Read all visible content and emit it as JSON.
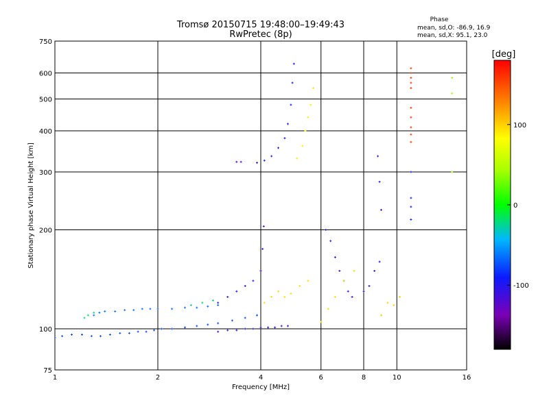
{
  "chart_data": {
    "type": "scatter",
    "title": "Tromsø 20150715 19:48:00–19:49:43",
    "subtitle": "RwPretec (8p)",
    "phase_header": {
      "title": "Phase",
      "line1": "mean, sd,O: -86.9, 16.9",
      "line2": "mean, sd,X:  95.1, 23.0"
    },
    "xlabel": "Frequency [MHz]",
    "ylabel": "Stationary phase Virtual Height [km]",
    "x_scale": "log",
    "y_scale": "log",
    "xlim": [
      1,
      16
    ],
    "ylim": [
      75,
      750
    ],
    "x_ticks": [
      1,
      2,
      4,
      6,
      8,
      10,
      16
    ],
    "x_tick_labels": [
      "1",
      "2",
      "4",
      "6",
      "8",
      "10",
      "16"
    ],
    "y_ticks": [
      75,
      100,
      200,
      300,
      400,
      500,
      600,
      750
    ],
    "y_tick_labels": [
      "75",
      "100",
      "200",
      "300",
      "400",
      "500",
      "600",
      "750"
    ],
    "grid": true,
    "colorbar": {
      "label": "[deg]",
      "range": [
        -180,
        180
      ],
      "ticks": [
        100,
        0,
        -100
      ],
      "tick_labels": [
        "100",
        "0",
        "-100"
      ]
    },
    "series": [
      {
        "phase": -75,
        "x": [
          1.0,
          1.05,
          1.12,
          1.2,
          1.28,
          1.36,
          1.45,
          1.55,
          1.65,
          1.75,
          1.85,
          1.95,
          2.05,
          2.2,
          2.4,
          2.6,
          2.8,
          3.0,
          3.3,
          3.6,
          3.9
        ],
        "y": [
          94,
          95,
          96,
          96,
          95,
          95,
          96,
          97,
          97,
          98,
          98,
          99,
          100,
          100,
          101,
          102,
          103,
          104,
          106,
          108,
          110
        ]
      },
      {
        "phase": -65,
        "x": [
          1.3,
          1.35,
          1.4,
          1.5,
          1.6,
          1.7,
          1.8,
          1.9,
          2.0,
          2.2,
          2.4,
          2.6,
          2.8,
          3.0
        ],
        "y": [
          110,
          112,
          113,
          113,
          114,
          114,
          115,
          115,
          115,
          115,
          116,
          116,
          117,
          118
        ]
      },
      {
        "phase": -20,
        "x": [
          1.22,
          1.25,
          1.3,
          2.5,
          2.7,
          2.9
        ],
        "y": [
          108,
          110,
          112,
          118,
          120,
          122
        ]
      },
      {
        "phase": -110,
        "x": [
          3.0,
          3.2,
          3.4,
          3.6,
          3.8,
          4.0,
          4.2,
          4.4,
          4.6,
          4.8
        ],
        "y": [
          98,
          99,
          99,
          100,
          100,
          101,
          101,
          101,
          102,
          102
        ]
      },
      {
        "phase": -100,
        "x": [
          3.0,
          3.2,
          3.4,
          3.6,
          3.8,
          4.0,
          4.05,
          4.08
        ],
        "y": [
          120,
          125,
          130,
          135,
          140,
          150,
          175,
          205
        ]
      },
      {
        "phase": 95,
        "x": [
          4.1,
          4.3,
          4.5,
          4.7,
          4.9,
          5.2,
          5.5
        ],
        "y": [
          120,
          125,
          130,
          125,
          128,
          135,
          140
        ]
      },
      {
        "phase": -95,
        "x": [
          3.9,
          4.1,
          4.3,
          4.5,
          4.7,
          4.8,
          4.9,
          4.95,
          5.0
        ],
        "y": [
          320,
          325,
          335,
          355,
          380,
          420,
          480,
          560,
          640
        ]
      },
      {
        "phase": -125,
        "x": [
          3.4,
          3.5
        ],
        "y": [
          322,
          322
        ]
      },
      {
        "phase": 90,
        "x": [
          5.1,
          5.3,
          5.4,
          5.5,
          5.6,
          5.7
        ],
        "y": [
          330,
          360,
          400,
          440,
          480,
          540
        ]
      },
      {
        "phase": -105,
        "x": [
          6.2,
          6.4,
          6.6,
          6.8,
          7.0,
          7.2,
          7.4
        ],
        "y": [
          200,
          185,
          165,
          150,
          140,
          130,
          125
        ]
      },
      {
        "phase": 95,
        "x": [
          6.0,
          6.3,
          6.6,
          7.0,
          7.5
        ],
        "y": [
          105,
          115,
          125,
          140,
          150
        ]
      },
      {
        "phase": -100,
        "x": [
          8.0,
          8.3,
          8.6,
          8.9
        ],
        "y": [
          130,
          135,
          150,
          160
        ]
      },
      {
        "phase": 100,
        "x": [
          9.0,
          9.4,
          9.8,
          10.2
        ],
        "y": [
          110,
          120,
          118,
          125
        ]
      },
      {
        "phase": -110,
        "x": [
          8.8,
          8.9,
          9.0
        ],
        "y": [
          335,
          280,
          230
        ]
      },
      {
        "phase": -95,
        "x": [
          11.0,
          11.0,
          11.0,
          11.0
        ],
        "y": [
          215,
          235,
          250,
          300
        ]
      },
      {
        "phase": 160,
        "x": [
          11.0,
          11.0,
          11.0,
          11.0,
          11.0,
          11.0,
          11.0,
          11.0,
          11.0,
          11.0
        ],
        "y": [
          370,
          390,
          410,
          440,
          470,
          540,
          560,
          580,
          600,
          620
        ]
      },
      {
        "phase": 40,
        "x": [
          14.5,
          14.5,
          14.5
        ],
        "y": [
          300,
          520,
          580
        ]
      }
    ]
  }
}
